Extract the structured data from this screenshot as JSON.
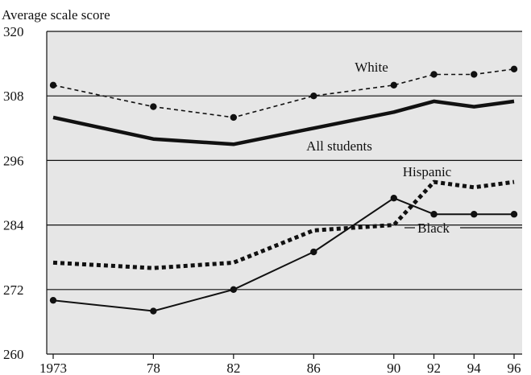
{
  "chart_data": {
    "type": "line",
    "title": "Average scale score",
    "xlabel": "",
    "ylabel": "",
    "x_tick_labels": [
      "1973",
      "78",
      "82",
      "86",
      "90",
      "92",
      "94",
      "96"
    ],
    "x": [
      1973,
      1978,
      1982,
      1986,
      1990,
      1992,
      1994,
      1996
    ],
    "ylim": [
      260,
      320
    ],
    "y_ticks": [
      260,
      272,
      284,
      296,
      308,
      320
    ],
    "grid": "horizontal",
    "background": "#e6e6e6",
    "series": [
      {
        "name": "White",
        "style": "dashed-thin-markers",
        "values": [
          310,
          306,
          304,
          308,
          310,
          312,
          312,
          313
        ]
      },
      {
        "name": "All students",
        "style": "solid-thick",
        "values": [
          304,
          300,
          299,
          302,
          305,
          307,
          306,
          307
        ]
      },
      {
        "name": "Hispanic",
        "style": "dotted-thick",
        "values": [
          277,
          276,
          277,
          283,
          284,
          292,
          291,
          292
        ]
      },
      {
        "name": "Black",
        "style": "solid-thin-markers",
        "values": [
          270,
          268,
          272,
          279,
          289,
          286,
          286,
          286
        ]
      }
    ]
  }
}
